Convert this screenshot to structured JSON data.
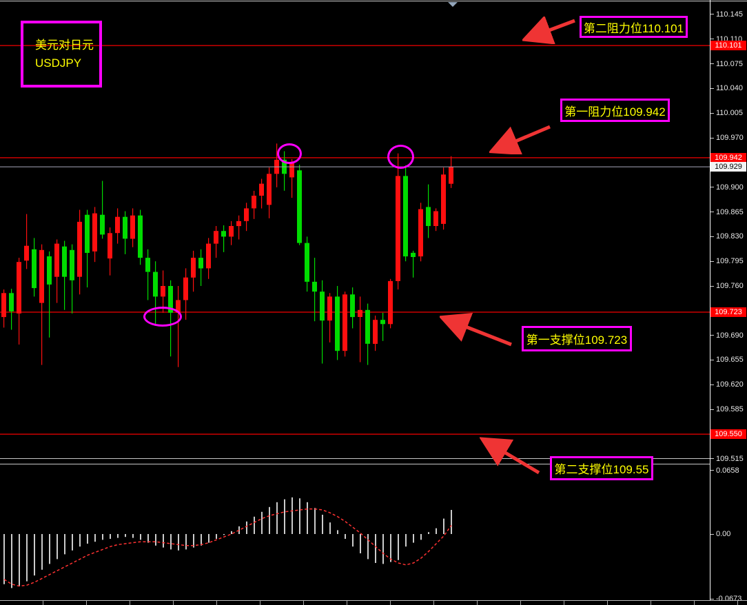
{
  "symbol_box": {
    "line1": "美元对日元",
    "line2": "USDJPY"
  },
  "annotations": {
    "resistance2": "第二阻力位110.101",
    "resistance1": "第一阻力位109.942",
    "support1": "第一支撑位109.723",
    "support2": "第二支撑位109.55"
  },
  "price_axis": {
    "ticks": [
      "110.145",
      "110.110",
      "110.075",
      "110.040",
      "110.005",
      "109.970",
      "109.900",
      "109.865",
      "109.830",
      "109.795",
      "109.760",
      "109.690",
      "109.655",
      "109.620",
      "109.585",
      "109.515"
    ],
    "level_tags": [
      "110.101",
      "109.942",
      "109.723",
      "109.550"
    ],
    "current_tag": "109.929"
  },
  "macd_axis": [
    "0.0658",
    "0.00",
    "-0.0673"
  ],
  "chart_data": {
    "type": "candlestick_with_macd",
    "symbol": "USDJPY",
    "title": "美元对日元 USDJPY",
    "resistance_levels": [
      110.101,
      109.942
    ],
    "support_levels": [
      109.723,
      109.55
    ],
    "level_lines": [
      110.101,
      109.942,
      109.723,
      109.55
    ],
    "current_price": 109.929,
    "price_axis_range": [
      109.515,
      110.145
    ],
    "macd_axis_range": [
      -0.0673,
      0.0658
    ],
    "candles_ohlc": [
      [
        109.716,
        109.755,
        109.701,
        109.75
      ],
      [
        109.75,
        109.756,
        109.698,
        109.724
      ],
      [
        109.721,
        109.8,
        109.677,
        109.794
      ],
      [
        109.796,
        109.862,
        109.784,
        109.817
      ],
      [
        109.812,
        109.828,
        109.745,
        109.757
      ],
      [
        109.736,
        109.819,
        109.648,
        109.811
      ],
      [
        109.802,
        109.809,
        109.687,
        109.762
      ],
      [
        109.773,
        109.826,
        109.736,
        109.82
      ],
      [
        109.816,
        109.824,
        109.726,
        109.773
      ],
      [
        109.811,
        109.819,
        109.721,
        109.768
      ],
      [
        109.773,
        109.868,
        109.748,
        109.851
      ],
      [
        109.861,
        109.868,
        109.758,
        109.807
      ],
      [
        109.809,
        109.872,
        109.794,
        109.863
      ],
      [
        109.861,
        109.909,
        109.827,
        109.833
      ],
      [
        109.799,
        109.843,
        109.775,
        109.835
      ],
      [
        109.835,
        109.87,
        109.82,
        109.858
      ],
      [
        109.858,
        109.866,
        109.805,
        109.827
      ],
      [
        109.827,
        109.87,
        109.815,
        109.86
      ],
      [
        109.86,
        109.868,
        109.79,
        109.8
      ],
      [
        109.8,
        109.812,
        109.74,
        109.78
      ],
      [
        109.78,
        109.795,
        109.705,
        109.745
      ],
      [
        109.745,
        109.782,
        109.722,
        109.76
      ],
      [
        109.76,
        109.768,
        109.66,
        109.722
      ],
      [
        109.722,
        109.76,
        109.645,
        109.74
      ],
      [
        109.74,
        109.785,
        109.712,
        109.772
      ],
      [
        109.772,
        109.81,
        109.752,
        109.8
      ],
      [
        109.8,
        109.812,
        109.76,
        109.785
      ],
      [
        109.785,
        109.828,
        109.77,
        109.82
      ],
      [
        109.82,
        109.845,
        109.8,
        109.838
      ],
      [
        109.838,
        109.846,
        109.808,
        109.83
      ],
      [
        109.83,
        109.852,
        109.818,
        109.845
      ],
      [
        109.845,
        109.86,
        109.826,
        109.852
      ],
      [
        109.852,
        109.878,
        109.838,
        109.87
      ],
      [
        109.87,
        109.895,
        109.855,
        109.888
      ],
      [
        109.888,
        109.912,
        109.87,
        109.905
      ],
      [
        109.875,
        109.928,
        109.856,
        109.919
      ],
      [
        109.919,
        109.962,
        109.9,
        109.939
      ],
      [
        109.939,
        109.951,
        109.895,
        109.919
      ],
      [
        109.914,
        109.94,
        109.885,
        109.936
      ],
      [
        109.924,
        109.932,
        109.818,
        109.821
      ],
      [
        109.821,
        109.83,
        109.752,
        109.766
      ],
      [
        109.766,
        109.8,
        109.71,
        109.752
      ],
      [
        109.752,
        109.768,
        109.65,
        109.711
      ],
      [
        109.711,
        109.75,
        109.68,
        109.745
      ],
      [
        109.745,
        109.76,
        109.655,
        109.668
      ],
      [
        109.668,
        109.752,
        109.66,
        109.748
      ],
      [
        109.748,
        109.758,
        109.7,
        109.716
      ],
      [
        109.716,
        109.745,
        109.652,
        109.726
      ],
      [
        109.726,
        109.735,
        109.648,
        109.678
      ],
      [
        109.678,
        109.718,
        109.668,
        109.712
      ],
      [
        109.712,
        109.722,
        109.682,
        109.706
      ],
      [
        109.706,
        109.77,
        109.7,
        109.767
      ],
      [
        109.767,
        109.948,
        109.755,
        109.916
      ],
      [
        109.916,
        109.931,
        109.795,
        109.802
      ],
      [
        109.807,
        109.81,
        109.772,
        109.801
      ],
      [
        109.802,
        109.878,
        109.795,
        109.869
      ],
      [
        109.872,
        109.904,
        109.828,
        109.845
      ],
      [
        109.845,
        109.87,
        109.838,
        109.866
      ],
      [
        109.848,
        109.928,
        109.84,
        109.918
      ],
      [
        109.905,
        109.944,
        109.899,
        109.929
      ]
    ],
    "macd": {
      "histogram": [
        -0.052,
        -0.056,
        -0.054,
        -0.049,
        -0.043,
        -0.037,
        -0.031,
        -0.026,
        -0.021,
        -0.017,
        -0.013,
        -0.01,
        -0.008,
        -0.006,
        -0.005,
        -0.004,
        -0.003,
        -0.004,
        -0.006,
        -0.009,
        -0.012,
        -0.014,
        -0.016,
        -0.017,
        -0.016,
        -0.014,
        -0.012,
        -0.009,
        -0.005,
        -0.001,
        0.003,
        0.008,
        0.013,
        0.018,
        0.023,
        0.028,
        0.033,
        0.036,
        0.038,
        0.037,
        0.033,
        0.027,
        0.02,
        0.012,
        0.004,
        -0.005,
        -0.013,
        -0.02,
        -0.026,
        -0.03,
        -0.031,
        -0.029,
        -0.027,
        -0.013,
        -0.009,
        -0.006,
        0.002,
        0.006,
        0.016,
        0.025
      ],
      "signal": [
        -0.047,
        -0.052,
        -0.054,
        -0.053,
        -0.05,
        -0.046,
        -0.042,
        -0.038,
        -0.034,
        -0.03,
        -0.026,
        -0.022,
        -0.019,
        -0.016,
        -0.013,
        -0.011,
        -0.01,
        -0.009,
        -0.008,
        -0.008,
        -0.008,
        -0.009,
        -0.01,
        -0.011,
        -0.012,
        -0.012,
        -0.011,
        -0.009,
        -0.006,
        -0.003,
        0.0,
        0.004,
        0.008,
        0.012,
        0.016,
        0.019,
        0.021,
        0.023,
        0.024,
        0.025,
        0.026,
        0.026,
        0.025,
        0.022,
        0.018,
        0.013,
        0.007,
        0.001,
        -0.006,
        -0.013,
        -0.02,
        -0.026,
        -0.03,
        -0.032,
        -0.03,
        -0.025,
        -0.018,
        -0.01,
        -0.002,
        0.009
      ]
    },
    "colors": {
      "bull": "#ff0f0f",
      "bear": "#00dc00",
      "level_line": "#ff0000",
      "current_line": "#a8a8bc",
      "histogram": "#cccccc",
      "signal": "#ff3232",
      "annotation_border": "#ff00ff",
      "annotation_text": "#ffff00",
      "tag_bg": "#ff0000",
      "tag_text": "#ffffff",
      "current_tag_bg": "#f2f2f2",
      "current_tag_text": "#000000",
      "arrow": "#ef3434"
    }
  }
}
